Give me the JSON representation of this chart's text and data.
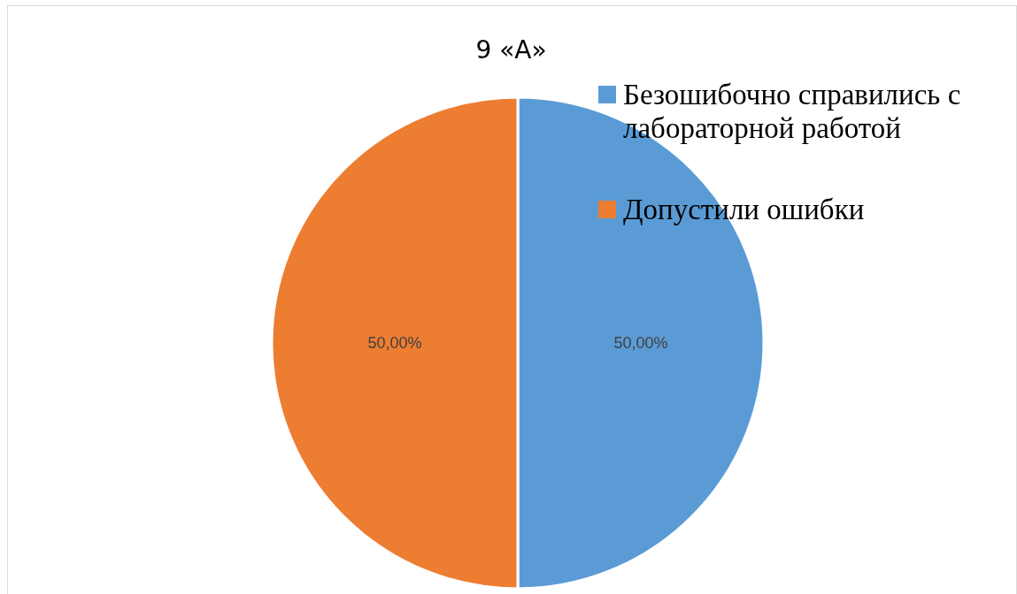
{
  "chart_data": {
    "type": "pie",
    "title": "9 «А»",
    "categories": [
      "Безошибочно справились с лабораторной работой",
      "Допустили ошибки"
    ],
    "values": [
      50,
      50
    ],
    "colors": [
      "#5b9bd5",
      "#ed7d31"
    ],
    "value_labels": [
      "50,00%",
      "50,00%"
    ],
    "legend": "top right"
  }
}
